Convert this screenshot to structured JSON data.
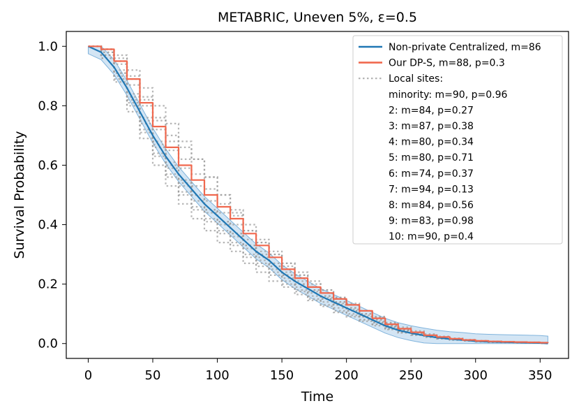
{
  "chart_data": {
    "type": "line",
    "title": "METABRIC, Uneven 5%, ε=0.5",
    "xlabel": "Time",
    "ylabel": "Survival Probability",
    "xlim": [
      -17,
      372
    ],
    "ylim": [
      -0.05,
      1.05
    ],
    "xticks": [
      0,
      50,
      100,
      150,
      200,
      250,
      300,
      350
    ],
    "yticks": [
      0.0,
      0.2,
      0.4,
      0.6,
      0.8,
      1.0
    ],
    "xtick_labels": [
      "0",
      "50",
      "100",
      "150",
      "200",
      "250",
      "300",
      "350"
    ],
    "ytick_labels": [
      "0.0",
      "0.2",
      "0.4",
      "0.6",
      "0.8",
      "1.0"
    ],
    "grid": false,
    "legend_position": "top-right",
    "legend_header": "Local sites:",
    "series": [
      {
        "name": "Non-private Centralized, m=86",
        "color": "#1f77b4",
        "style": "solid",
        "x": [
          0,
          10,
          20,
          30,
          40,
          50,
          60,
          70,
          80,
          90,
          100,
          110,
          120,
          130,
          140,
          150,
          160,
          170,
          180,
          190,
          200,
          210,
          220,
          230,
          240,
          250,
          260,
          270,
          280,
          290,
          300,
          310,
          320,
          330,
          340,
          350,
          356
        ],
        "y": [
          1.0,
          0.98,
          0.93,
          0.86,
          0.78,
          0.7,
          0.63,
          0.57,
          0.52,
          0.47,
          0.43,
          0.39,
          0.35,
          0.31,
          0.28,
          0.24,
          0.21,
          0.185,
          0.16,
          0.14,
          0.12,
          0.1,
          0.08,
          0.06,
          0.045,
          0.035,
          0.027,
          0.02,
          0.015,
          0.012,
          0.008,
          0.006,
          0.005,
          0.004,
          0.003,
          0.002,
          0.0
        ]
      },
      {
        "name": "Our DP-S, m=88, p=0.3",
        "color": "#f0684e",
        "style": "step",
        "x": [
          0,
          10,
          20,
          30,
          40,
          50,
          60,
          70,
          80,
          90,
          100,
          110,
          120,
          130,
          140,
          150,
          160,
          170,
          180,
          190,
          200,
          210,
          220,
          230,
          240,
          250,
          260,
          270,
          280,
          290,
          300,
          310,
          320,
          330,
          340,
          350,
          356
        ],
        "y": [
          1.0,
          0.99,
          0.95,
          0.89,
          0.81,
          0.73,
          0.66,
          0.6,
          0.55,
          0.5,
          0.46,
          0.42,
          0.37,
          0.33,
          0.29,
          0.25,
          0.22,
          0.19,
          0.17,
          0.15,
          0.13,
          0.11,
          0.085,
          0.065,
          0.05,
          0.038,
          0.028,
          0.022,
          0.016,
          0.012,
          0.009,
          0.007,
          0.006,
          0.005,
          0.004,
          0.003,
          0.002
        ]
      }
    ],
    "local_sites": [
      {
        "name": "minority: m=90, p=0.96",
        "color": "#9e9e9e",
        "x": [
          0,
          10,
          20,
          30,
          40,
          50,
          60,
          70,
          80,
          90,
          100,
          110,
          120,
          130,
          140,
          150,
          160,
          170,
          180,
          190,
          200,
          210,
          220,
          230,
          240,
          250,
          260,
          270,
          280,
          290,
          300,
          310,
          320,
          330,
          340,
          350,
          356
        ],
        "y": [
          1.0,
          0.99,
          0.96,
          0.9,
          0.83,
          0.76,
          0.7,
          0.66,
          0.62,
          0.56,
          0.5,
          0.44,
          0.38,
          0.34,
          0.3,
          0.27,
          0.23,
          0.19,
          0.16,
          0.14,
          0.12,
          0.1,
          0.08,
          0.06,
          0.045,
          0.035,
          0.027,
          0.02,
          0.015,
          0.012,
          0.008,
          0.006,
          0.005,
          0.004,
          0.003,
          0.002,
          0.0
        ]
      },
      {
        "name": "2: m=84, p=0.27",
        "color": "#9e9e9e",
        "x": [
          0,
          10,
          20,
          30,
          40,
          50,
          60,
          70,
          80,
          90,
          100,
          110,
          120,
          130,
          140,
          150,
          160,
          170,
          180,
          190,
          200,
          210,
          220,
          230,
          240,
          250,
          260,
          270,
          280,
          290,
          300,
          310,
          320,
          330,
          340,
          350,
          356
        ],
        "y": [
          1.0,
          0.97,
          0.91,
          0.83,
          0.75,
          0.67,
          0.6,
          0.54,
          0.5,
          0.45,
          0.41,
          0.37,
          0.33,
          0.29,
          0.26,
          0.23,
          0.2,
          0.175,
          0.15,
          0.13,
          0.11,
          0.09,
          0.07,
          0.055,
          0.042,
          0.033,
          0.026,
          0.019,
          0.015,
          0.012,
          0.008,
          0.006,
          0.005,
          0.004,
          0.003,
          0.002,
          0.0
        ]
      },
      {
        "name": "3: m=87, p=0.38",
        "color": "#9e9e9e",
        "x": [
          0,
          10,
          20,
          30,
          40,
          50,
          60,
          70,
          80,
          90,
          100,
          110,
          120,
          130,
          140,
          150,
          160,
          170,
          180,
          190,
          200,
          210,
          220,
          230,
          240,
          250,
          260,
          270,
          280,
          290,
          300,
          310,
          320,
          330,
          340,
          350,
          356
        ],
        "y": [
          1.0,
          0.98,
          0.94,
          0.87,
          0.8,
          0.72,
          0.65,
          0.59,
          0.53,
          0.48,
          0.44,
          0.4,
          0.35,
          0.31,
          0.27,
          0.24,
          0.21,
          0.18,
          0.16,
          0.14,
          0.12,
          0.1,
          0.08,
          0.06,
          0.045,
          0.035,
          0.027,
          0.02,
          0.015,
          0.012,
          0.008,
          0.006,
          0.005,
          0.004,
          0.003,
          0.002,
          0.0
        ]
      },
      {
        "name": "4: m=80, p=0.34",
        "color": "#9e9e9e",
        "x": [
          0,
          10,
          20,
          30,
          40,
          50,
          60,
          70,
          80,
          90,
          100,
          110,
          120,
          130,
          140,
          150,
          160,
          170,
          180,
          190,
          200,
          210,
          220,
          230,
          240,
          250,
          260,
          270,
          280,
          290,
          300,
          310,
          320,
          330,
          340,
          350,
          356
        ],
        "y": [
          1.0,
          0.97,
          0.9,
          0.81,
          0.72,
          0.64,
          0.57,
          0.51,
          0.46,
          0.42,
          0.38,
          0.34,
          0.3,
          0.27,
          0.24,
          0.21,
          0.18,
          0.16,
          0.14,
          0.12,
          0.1,
          0.08,
          0.065,
          0.05,
          0.038,
          0.03,
          0.023,
          0.017,
          0.013,
          0.01,
          0.007,
          0.005,
          0.004,
          0.003,
          0.002,
          0.001,
          0.0
        ]
      },
      {
        "name": "5: m=80, p=0.71",
        "color": "#9e9e9e",
        "x": [
          0,
          10,
          20,
          30,
          40,
          50,
          60,
          70,
          80,
          90,
          100,
          110,
          120,
          130,
          140,
          150,
          160,
          170,
          180,
          190,
          200,
          210,
          220,
          230,
          240,
          250,
          260,
          270,
          280,
          290,
          300,
          310,
          320,
          330,
          340,
          350,
          356
        ],
        "y": [
          1.0,
          0.96,
          0.89,
          0.8,
          0.71,
          0.63,
          0.56,
          0.5,
          0.45,
          0.41,
          0.37,
          0.33,
          0.29,
          0.26,
          0.23,
          0.2,
          0.175,
          0.15,
          0.13,
          0.11,
          0.095,
          0.08,
          0.065,
          0.05,
          0.038,
          0.03,
          0.023,
          0.017,
          0.013,
          0.01,
          0.007,
          0.005,
          0.004,
          0.003,
          0.002,
          0.001,
          0.0
        ]
      },
      {
        "name": "6: m=74, p=0.37",
        "color": "#9e9e9e",
        "x": [
          0,
          10,
          20,
          30,
          40,
          50,
          60,
          70,
          80,
          90,
          100,
          110,
          120,
          130,
          140,
          150,
          160,
          170,
          180,
          190,
          200,
          210,
          220,
          230,
          240,
          250,
          260,
          270,
          280,
          290,
          300,
          310,
          320,
          330,
          340,
          350,
          356
        ],
        "y": [
          1.0,
          0.96,
          0.88,
          0.78,
          0.69,
          0.6,
          0.53,
          0.47,
          0.42,
          0.38,
          0.34,
          0.31,
          0.27,
          0.24,
          0.21,
          0.19,
          0.165,
          0.145,
          0.125,
          0.105,
          0.09,
          0.075,
          0.06,
          0.047,
          0.036,
          0.028,
          0.021,
          0.016,
          0.012,
          0.009,
          0.006,
          0.005,
          0.004,
          0.003,
          0.002,
          0.001,
          0.0
        ]
      },
      {
        "name": "7: m=94, p=0.13",
        "color": "#9e9e9e",
        "x": [
          0,
          10,
          20,
          30,
          40,
          50,
          60,
          70,
          80,
          90,
          100,
          110,
          120,
          130,
          140,
          150,
          160,
          170,
          180,
          190,
          200,
          210,
          220,
          230,
          240,
          250,
          260,
          270,
          280,
          290,
          300,
          310,
          320,
          330,
          340,
          350,
          356
        ],
        "y": [
          1.0,
          0.99,
          0.97,
          0.92,
          0.86,
          0.8,
          0.74,
          0.68,
          0.62,
          0.56,
          0.5,
          0.45,
          0.4,
          0.35,
          0.31,
          0.27,
          0.24,
          0.21,
          0.18,
          0.155,
          0.135,
          0.11,
          0.09,
          0.07,
          0.05,
          0.038,
          0.028,
          0.02,
          0.015,
          0.012,
          0.009,
          0.007,
          0.005,
          0.004,
          0.003,
          0.002,
          0.0
        ]
      },
      {
        "name": "8: m=84, p=0.56",
        "color": "#9e9e9e",
        "x": [
          0,
          10,
          20,
          30,
          40,
          50,
          60,
          70,
          80,
          90,
          100,
          110,
          120,
          130,
          140,
          150,
          160,
          170,
          180,
          190,
          200,
          210,
          220,
          230,
          240,
          250,
          260,
          270,
          280,
          290,
          300,
          310,
          320,
          330,
          340,
          350,
          356
        ],
        "y": [
          1.0,
          0.98,
          0.92,
          0.84,
          0.76,
          0.68,
          0.61,
          0.55,
          0.5,
          0.45,
          0.41,
          0.37,
          0.33,
          0.3,
          0.26,
          0.23,
          0.2,
          0.18,
          0.155,
          0.135,
          0.115,
          0.095,
          0.075,
          0.058,
          0.044,
          0.034,
          0.026,
          0.019,
          0.014,
          0.011,
          0.008,
          0.006,
          0.005,
          0.004,
          0.003,
          0.002,
          0.0
        ]
      },
      {
        "name": "9: m=83, p=0.98",
        "color": "#9e9e9e",
        "x": [
          0,
          10,
          20,
          30,
          40,
          50,
          60,
          70,
          80,
          90,
          100,
          110,
          120,
          130,
          140,
          150,
          160,
          170,
          180,
          190,
          200,
          210,
          220,
          230,
          240,
          250,
          260,
          270,
          280,
          290,
          300,
          310,
          320,
          330,
          340,
          350,
          356
        ],
        "y": [
          1.0,
          0.97,
          0.91,
          0.82,
          0.74,
          0.66,
          0.59,
          0.53,
          0.48,
          0.44,
          0.4,
          0.36,
          0.32,
          0.28,
          0.25,
          0.22,
          0.19,
          0.17,
          0.15,
          0.13,
          0.11,
          0.09,
          0.072,
          0.056,
          0.042,
          0.033,
          0.025,
          0.018,
          0.014,
          0.011,
          0.008,
          0.006,
          0.005,
          0.004,
          0.003,
          0.002,
          0.0
        ]
      },
      {
        "name": "10: m=90, p=0.4",
        "color": "#9e9e9e",
        "x": [
          0,
          10,
          20,
          30,
          40,
          50,
          60,
          70,
          80,
          90,
          100,
          110,
          120,
          130,
          140,
          150,
          160,
          170,
          180,
          190,
          200,
          210,
          220,
          230,
          240,
          250,
          260,
          270,
          280,
          290,
          300,
          310,
          320,
          330,
          340,
          350,
          356
        ],
        "y": [
          1.0,
          0.99,
          0.95,
          0.89,
          0.82,
          0.75,
          0.68,
          0.62,
          0.57,
          0.52,
          0.47,
          0.43,
          0.38,
          0.34,
          0.3,
          0.26,
          0.23,
          0.2,
          0.18,
          0.155,
          0.13,
          0.11,
          0.09,
          0.07,
          0.055,
          0.042,
          0.032,
          0.024,
          0.018,
          0.013,
          0.009,
          0.007,
          0.006,
          0.005,
          0.004,
          0.003,
          0.0
        ]
      }
    ]
  }
}
